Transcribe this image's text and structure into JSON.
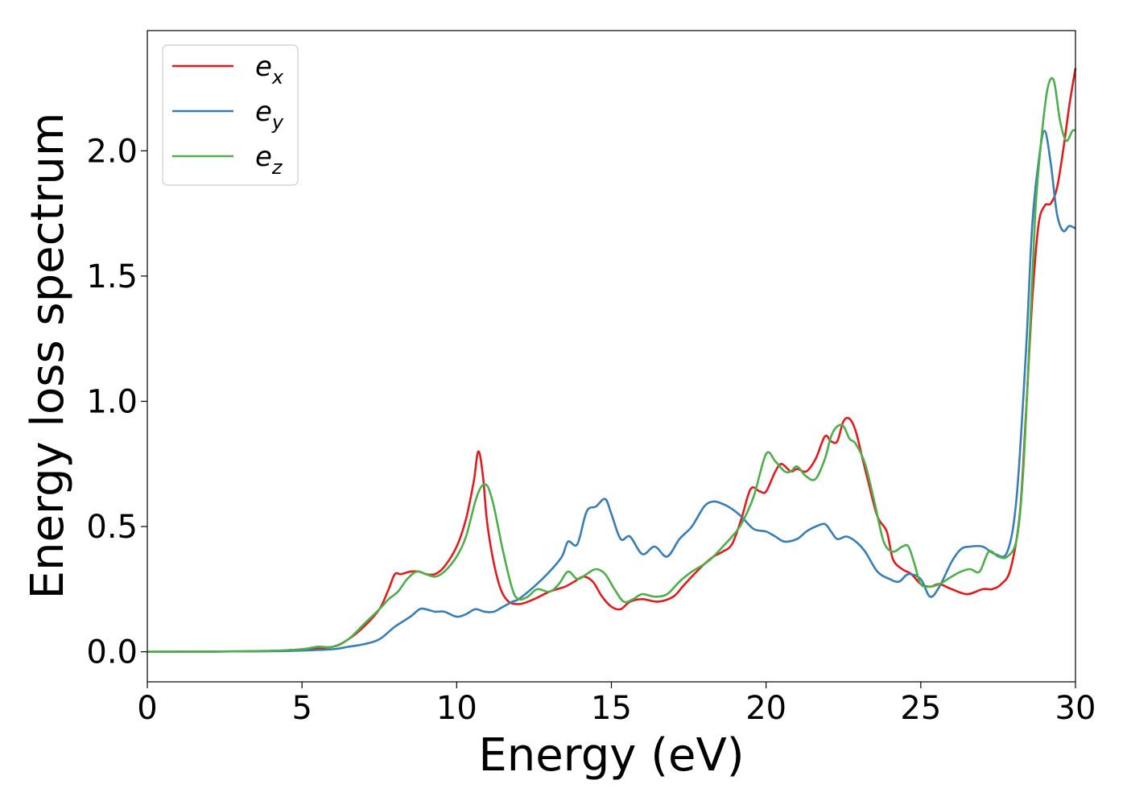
{
  "chart_data": {
    "type": "line",
    "xlabel": "Energy (eV)",
    "ylabel": "Energy loss spectrum",
    "xlim": [
      0,
      30
    ],
    "ylim": [
      -0.12,
      2.48
    ],
    "xticks": [
      0,
      5,
      10,
      15,
      20,
      25,
      30
    ],
    "xtick_labels": [
      "0",
      "5",
      "10",
      "15",
      "20",
      "25",
      "30"
    ],
    "yticks": [
      0.0,
      0.5,
      1.0,
      1.5,
      2.0
    ],
    "ytick_labels": [
      "0.0",
      "0.5",
      "1.0",
      "1.5",
      "2.0"
    ],
    "grid": false,
    "legend_position": "top-left",
    "series": [
      {
        "name": "e",
        "subscript": "x",
        "color": "#e41a1c",
        "x": [
          0,
          2,
          4,
          5,
          6,
          6.5,
          7,
          7.5,
          7.8,
          8.0,
          8.2,
          8.5,
          8.8,
          9.0,
          9.3,
          9.6,
          10.0,
          10.3,
          10.55,
          10.7,
          10.85,
          11.0,
          11.3,
          11.6,
          12.0,
          12.5,
          13.0,
          13.5,
          13.8,
          14.1,
          14.4,
          14.7,
          15.0,
          15.3,
          15.6,
          16.0,
          16.5,
          17.0,
          17.3,
          17.6,
          18.0,
          18.3,
          18.6,
          18.9,
          19.2,
          19.5,
          19.8,
          20.0,
          20.3,
          20.5,
          20.8,
          21.0,
          21.3,
          21.6,
          21.9,
          22.1,
          22.3,
          22.5,
          22.7,
          22.9,
          23.1,
          23.3,
          23.6,
          23.9,
          24.1,
          24.4,
          24.7,
          25.0,
          25.3,
          25.6,
          26.0,
          26.5,
          27.0,
          27.3,
          27.6,
          27.9,
          28.2,
          28.4,
          28.6,
          28.8,
          29.0,
          29.2,
          29.4,
          29.6,
          29.8,
          30.0
        ],
        "values": [
          0,
          0.001,
          0.003,
          0.01,
          0.02,
          0.05,
          0.1,
          0.17,
          0.25,
          0.31,
          0.31,
          0.32,
          0.32,
          0.31,
          0.31,
          0.34,
          0.42,
          0.53,
          0.68,
          0.8,
          0.7,
          0.5,
          0.3,
          0.21,
          0.19,
          0.21,
          0.24,
          0.26,
          0.28,
          0.3,
          0.28,
          0.22,
          0.18,
          0.17,
          0.2,
          0.21,
          0.2,
          0.22,
          0.26,
          0.3,
          0.35,
          0.38,
          0.4,
          0.43,
          0.53,
          0.65,
          0.64,
          0.64,
          0.72,
          0.75,
          0.72,
          0.73,
          0.72,
          0.77,
          0.86,
          0.84,
          0.84,
          0.92,
          0.93,
          0.88,
          0.78,
          0.68,
          0.54,
          0.48,
          0.37,
          0.33,
          0.31,
          0.27,
          0.26,
          0.27,
          0.25,
          0.23,
          0.25,
          0.25,
          0.27,
          0.33,
          0.55,
          0.95,
          1.4,
          1.7,
          1.78,
          1.79,
          1.85,
          2.0,
          2.18,
          2.33
        ]
      },
      {
        "name": "e",
        "subscript": "y",
        "color": "#377eb8",
        "x": [
          0,
          2,
          4,
          5,
          6,
          6.5,
          7,
          7.5,
          8,
          8.5,
          8.8,
          9.0,
          9.3,
          9.6,
          10.0,
          10.3,
          10.6,
          10.9,
          11.2,
          11.5,
          11.8,
          12.0,
          12.5,
          13.0,
          13.4,
          13.6,
          13.9,
          14.2,
          14.5,
          14.8,
          15.0,
          15.3,
          15.6,
          16.0,
          16.4,
          16.8,
          17.2,
          17.6,
          18.0,
          18.3,
          18.6,
          18.9,
          19.2,
          19.6,
          20.0,
          20.3,
          20.6,
          21.0,
          21.3,
          21.6,
          21.9,
          22.1,
          22.3,
          22.6,
          22.9,
          23.2,
          23.6,
          24.0,
          24.3,
          24.6,
          25.0,
          25.3,
          25.6,
          26.0,
          26.3,
          26.6,
          27.0,
          27.4,
          27.8,
          28.1,
          28.4,
          28.6,
          28.8,
          29.0,
          29.2,
          29.4,
          29.6,
          29.8,
          30.0
        ],
        "values": [
          0,
          0.001,
          0.002,
          0.005,
          0.01,
          0.02,
          0.03,
          0.05,
          0.1,
          0.14,
          0.17,
          0.17,
          0.16,
          0.16,
          0.14,
          0.15,
          0.17,
          0.16,
          0.16,
          0.18,
          0.2,
          0.21,
          0.26,
          0.32,
          0.38,
          0.44,
          0.43,
          0.56,
          0.58,
          0.61,
          0.55,
          0.45,
          0.46,
          0.39,
          0.42,
          0.38,
          0.45,
          0.5,
          0.58,
          0.6,
          0.59,
          0.57,
          0.54,
          0.49,
          0.48,
          0.46,
          0.44,
          0.45,
          0.48,
          0.5,
          0.51,
          0.48,
          0.45,
          0.46,
          0.44,
          0.4,
          0.32,
          0.29,
          0.28,
          0.31,
          0.29,
          0.22,
          0.26,
          0.36,
          0.41,
          0.42,
          0.42,
          0.39,
          0.4,
          0.62,
          1.2,
          1.7,
          1.95,
          2.08,
          1.95,
          1.75,
          1.68,
          1.7,
          1.69
        ]
      },
      {
        "name": "e",
        "subscript": "z",
        "color": "#4daf4a",
        "x": [
          0,
          2,
          4,
          5,
          5.5,
          6,
          6.5,
          7,
          7.5,
          7.8,
          8.1,
          8.4,
          8.7,
          9.0,
          9.3,
          9.6,
          10.0,
          10.3,
          10.6,
          10.8,
          11.0,
          11.2,
          11.5,
          11.8,
          12.0,
          12.3,
          12.6,
          13.0,
          13.3,
          13.6,
          13.9,
          14.2,
          14.5,
          14.8,
          15.1,
          15.4,
          15.7,
          16.0,
          16.4,
          16.8,
          17.2,
          17.6,
          18.0,
          18.3,
          18.6,
          18.9,
          19.2,
          19.6,
          20.0,
          20.3,
          20.6,
          20.8,
          21.0,
          21.3,
          21.6,
          21.9,
          22.1,
          22.3,
          22.5,
          22.7,
          22.9,
          23.2,
          23.5,
          23.8,
          24.1,
          24.4,
          24.6,
          24.8,
          25.0,
          25.3,
          25.6,
          26.0,
          26.3,
          26.6,
          26.9,
          27.2,
          27.5,
          27.8,
          28.1,
          28.3,
          28.5,
          28.7,
          28.9,
          29.1,
          29.3,
          29.5,
          29.7,
          29.9,
          30.0
        ],
        "values": [
          0,
          0.001,
          0.004,
          0.01,
          0.02,
          0.02,
          0.05,
          0.11,
          0.17,
          0.21,
          0.24,
          0.29,
          0.32,
          0.31,
          0.3,
          0.32,
          0.38,
          0.46,
          0.6,
          0.66,
          0.66,
          0.58,
          0.4,
          0.25,
          0.21,
          0.22,
          0.25,
          0.24,
          0.27,
          0.32,
          0.29,
          0.31,
          0.33,
          0.31,
          0.25,
          0.2,
          0.21,
          0.23,
          0.22,
          0.23,
          0.28,
          0.32,
          0.35,
          0.38,
          0.42,
          0.46,
          0.51,
          0.62,
          0.79,
          0.76,
          0.72,
          0.72,
          0.74,
          0.7,
          0.69,
          0.77,
          0.86,
          0.9,
          0.9,
          0.85,
          0.83,
          0.75,
          0.6,
          0.44,
          0.4,
          0.42,
          0.42,
          0.35,
          0.27,
          0.26,
          0.27,
          0.3,
          0.32,
          0.33,
          0.32,
          0.4,
          0.38,
          0.38,
          0.45,
          0.7,
          1.2,
          1.75,
          2.05,
          2.25,
          2.28,
          2.12,
          2.04,
          2.08,
          2.08
        ]
      }
    ]
  }
}
